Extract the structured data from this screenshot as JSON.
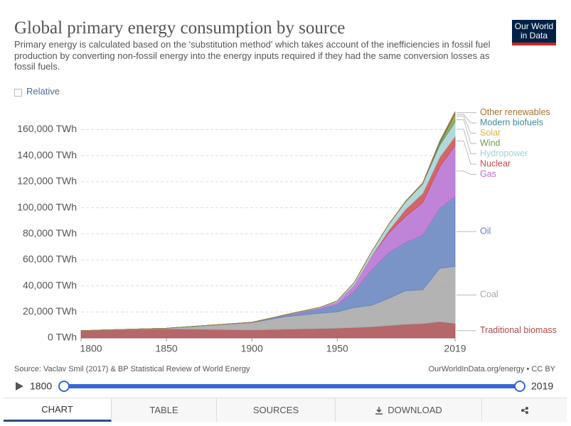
{
  "header": {
    "title": "Global primary energy consumption by source",
    "subtitle": "Primary energy is calculated based on the 'substitution method' which takes account of the inefficiencies in fossil fuel production by converting non-fossil energy into the energy inputs required if they had the same conversion losses as fossil fuels.",
    "logo": [
      "Our World",
      "in Data"
    ]
  },
  "controls": {
    "relative": "Relative"
  },
  "chart_data": {
    "type": "stacked_area",
    "x": [
      1800,
      1850,
      1900,
      1920,
      1940,
      1950,
      1960,
      1970,
      1980,
      1990,
      2000,
      2010,
      2019
    ],
    "xlim": [
      1800,
      2019
    ],
    "xticks": [
      1800,
      1850,
      1900,
      1950,
      2019
    ],
    "ylim": [
      0,
      175000
    ],
    "yticks": [
      {
        "value": 0,
        "label": "0 TWh"
      },
      {
        "value": 20000,
        "label": "20,000 TWh"
      },
      {
        "value": 40000,
        "label": "40,000 TWh"
      },
      {
        "value": 60000,
        "label": "60,000 TWh"
      },
      {
        "value": 80000,
        "label": "80,000 TWh"
      },
      {
        "value": 100000,
        "label": "100,000 TWh"
      },
      {
        "value": 120000,
        "label": "120,000 TWh"
      },
      {
        "value": 140000,
        "label": "140,000 TWh"
      },
      {
        "value": 160000,
        "label": "160,000 TWh"
      }
    ],
    "grid": true,
    "series": [
      {
        "name": "Traditional biomass",
        "color": "#a84c4f",
        "values": [
          5556,
          6944,
          6111,
          6700,
          7200,
          7500,
          8000,
          8500,
          9500,
          10500,
          11000,
          12500,
          11111
        ]
      },
      {
        "name": "Coal",
        "color": "#a6a6a6",
        "values": [
          97,
          550,
          5700,
          9700,
          11800,
          12600,
          15400,
          16500,
          20900,
          25800,
          26000,
          41000,
          43800
        ]
      },
      {
        "name": "Oil",
        "color": "#6481bd",
        "values": [
          0,
          0,
          180,
          1100,
          3200,
          5400,
          12400,
          27000,
          35000,
          37000,
          42000,
          46000,
          53600
        ]
      },
      {
        "name": "Gas",
        "color": "#b46fd0",
        "values": [
          0,
          0,
          60,
          250,
          900,
          2100,
          5000,
          10500,
          15000,
          20000,
          25000,
          32000,
          39300
        ]
      },
      {
        "name": "Nuclear",
        "color": "#cf4a4d",
        "values": [
          0,
          0,
          0,
          0,
          0,
          0,
          0,
          200,
          2000,
          5500,
          7000,
          7300,
          7000
        ]
      },
      {
        "name": "Hydropower",
        "color": "#a3d2d6",
        "values": [
          0,
          0,
          0,
          200,
          500,
          900,
          1900,
          3300,
          4600,
          5800,
          7200,
          9000,
          11000
        ]
      },
      {
        "name": "Wind",
        "color": "#6b9e4e",
        "values": [
          0,
          0,
          0,
          0,
          0,
          0,
          0,
          0,
          0,
          10,
          80,
          900,
          3500
        ]
      },
      {
        "name": "Solar",
        "color": "#d9b63c",
        "values": [
          0,
          0,
          0,
          0,
          0,
          0,
          0,
          0,
          0,
          0,
          0,
          80,
          1800
        ]
      },
      {
        "name": "Modern biofuels",
        "color": "#3f8a9c",
        "values": [
          0,
          0,
          0,
          0,
          0,
          0,
          0,
          0,
          0,
          200,
          250,
          1500,
          1100
        ]
      },
      {
        "name": "Other renewables",
        "color": "#a6722e",
        "values": [
          0,
          0,
          0,
          0,
          0,
          0,
          0,
          0,
          150,
          300,
          500,
          900,
          1600
        ]
      }
    ]
  },
  "footer": {
    "source": "Source: Vaclav Smil (2017) & BP Statistical Review of World Energy",
    "credit": "OurWorldInData.org/energy • CC BY"
  },
  "timeline": {
    "start": "1800",
    "end": "2019"
  },
  "tabs": [
    "CHART",
    "TABLE",
    "SOURCES",
    "DOWNLOAD"
  ]
}
